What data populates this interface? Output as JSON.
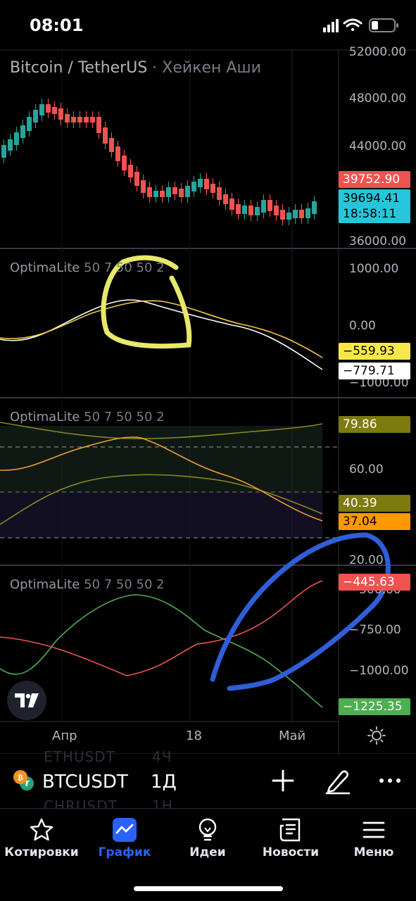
{
  "status_bar": {
    "time": "08:01"
  },
  "chart": {
    "symbol_title": "Bitcoin / TetherUS",
    "chart_style": "· Хейкен Аши",
    "price_axis": [
      "52000.00",
      "48000.00",
      "44000.00",
      "36000.00"
    ],
    "last_price": "39752.90",
    "current_price": "39694.41",
    "countdown": "18:58:11",
    "time_axis": [
      "Апр",
      "18",
      "Май"
    ]
  },
  "indicators": [
    {
      "name": "OptimaLite",
      "params": "50 7 50 50 2",
      "axis": [
        "1000.00",
        "0.00",
        "−1000.00"
      ],
      "badges": [
        "−559.93",
        "−779.71"
      ]
    },
    {
      "name": "OptimaLite",
      "params": "50 7 50 50 2",
      "axis": [
        "60.00",
        "20.00"
      ],
      "badges": [
        "79.86",
        "40.39",
        "37.04"
      ]
    },
    {
      "name": "OptimaLite",
      "params": "50 7 50 50 2",
      "axis": [
        "−500.00",
        "−750.00",
        "−1000.00"
      ],
      "badges": [
        "−445.63",
        "−1225.35"
      ]
    }
  ],
  "symbol_bar": {
    "symbol": "BTCUSDT",
    "timeframe": "1Д",
    "ghost_above": [
      "ETHUSDT",
      "4Ч"
    ],
    "ghost_below": [
      "CHRUSDT",
      "1Н"
    ]
  },
  "nav": [
    {
      "label": "Котировки",
      "icon": "star-icon"
    },
    {
      "label": "График",
      "icon": "chart-icon",
      "active": true
    },
    {
      "label": "Идеи",
      "icon": "lightbulb-icon"
    },
    {
      "label": "Новости",
      "icon": "news-icon"
    },
    {
      "label": "Меню",
      "icon": "menu-icon"
    }
  ],
  "colors": {
    "up": "#26a69a",
    "down": "#ef5350",
    "yellow": "#fbe76a",
    "blue": "#2962ff"
  }
}
